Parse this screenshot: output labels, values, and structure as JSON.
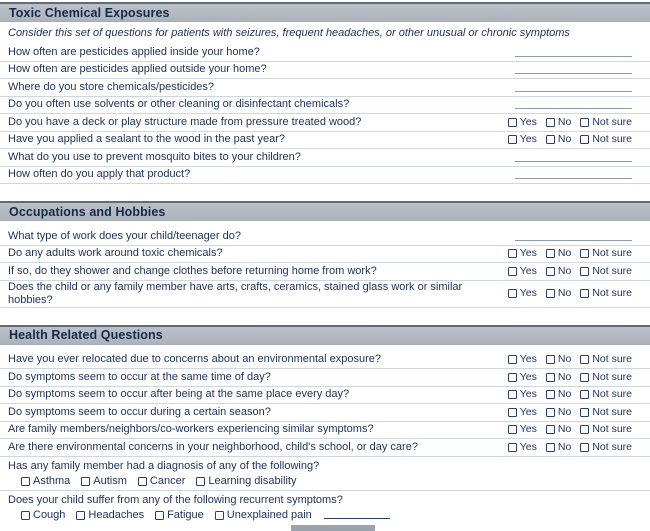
{
  "colors": {
    "header_bar_fill": "#b4bac2",
    "header_bar_top_border": "#606b7a",
    "navy_text": "#1c3158",
    "row_separator": "#cdd7e3",
    "answer_blank_line": "#8e99a9",
    "bottom_gray_blank": "#9ba3ad"
  },
  "yes_no_options": [
    "Yes",
    "No",
    "Not sure"
  ],
  "sections": [
    {
      "title": "Toxic Chemical Exposures",
      "note": "Consider this set of questions for patients with seizures, frequent headaches, or other unusual or chronic symptoms",
      "questions": [
        {
          "text": "How often are pesticides applied inside your home?",
          "answer": "blank"
        },
        {
          "text": "How often are pesticides applied outside your home?",
          "answer": "blank"
        },
        {
          "text": "Where do you store chemicals/pesticides?",
          "answer": "blank"
        },
        {
          "text": "Do you often use solvents or other cleaning or disinfectant chemicals?",
          "answer": "blank"
        },
        {
          "text": "Do you have a deck or play structure made from pressure treated wood?",
          "answer": "choices"
        },
        {
          "text": "Have you applied a sealant to the wood in the past year?",
          "answer": "choices"
        },
        {
          "text": "What do you use to prevent mosquito bites to your children?",
          "answer": "blank"
        },
        {
          "text": "How often do you apply that product?",
          "answer": "blank"
        }
      ]
    },
    {
      "title": "Occupations and Hobbies",
      "note": "",
      "questions": [
        {
          "text": "What type of work does your child/teenager do?",
          "answer": "blank"
        },
        {
          "text": "Do any adults work around toxic chemicals?",
          "answer": "choices"
        },
        {
          "text": "If so, do they shower and change clothes before returning home from work?",
          "answer": "choices"
        },
        {
          "text": "Does the child or any family member have arts, crafts, ceramics, stained glass work or similar hobbies?",
          "answer": "choices"
        }
      ]
    },
    {
      "title": "Health Related Questions",
      "note": "",
      "questions": [
        {
          "text": "Have you ever relocated due to concerns about an environmental exposure?",
          "answer": "choices"
        },
        {
          "text": "Do symptoms seem to occur at the same time of day?",
          "answer": "choices"
        },
        {
          "text": "Do symptoms seem to occur after being at the same place every day?",
          "answer": "choices"
        },
        {
          "text": "Do symptoms seem to occur during a certain season?",
          "answer": "choices"
        },
        {
          "text": "Are family members/neighbors/co-workers experiencing similar symptoms?",
          "answer": "choices"
        },
        {
          "text": "Are there environmental concerns in your neighborhood, child's school, or day care?",
          "answer": "choices"
        },
        {
          "text": "Has any family member had a diagnosis of any of the following?",
          "answer": "checklist",
          "options": [
            "Asthma",
            "Autism",
            "Cancer",
            "Learning disability"
          ],
          "trailing_blank": false
        },
        {
          "text": "Does your child suffer from any of the following recurrent symptoms?",
          "answer": "checklist",
          "options": [
            "Cough",
            "Headaches",
            "Fatigue",
            "Unexplained pain"
          ],
          "trailing_blank": true
        }
      ]
    }
  ]
}
